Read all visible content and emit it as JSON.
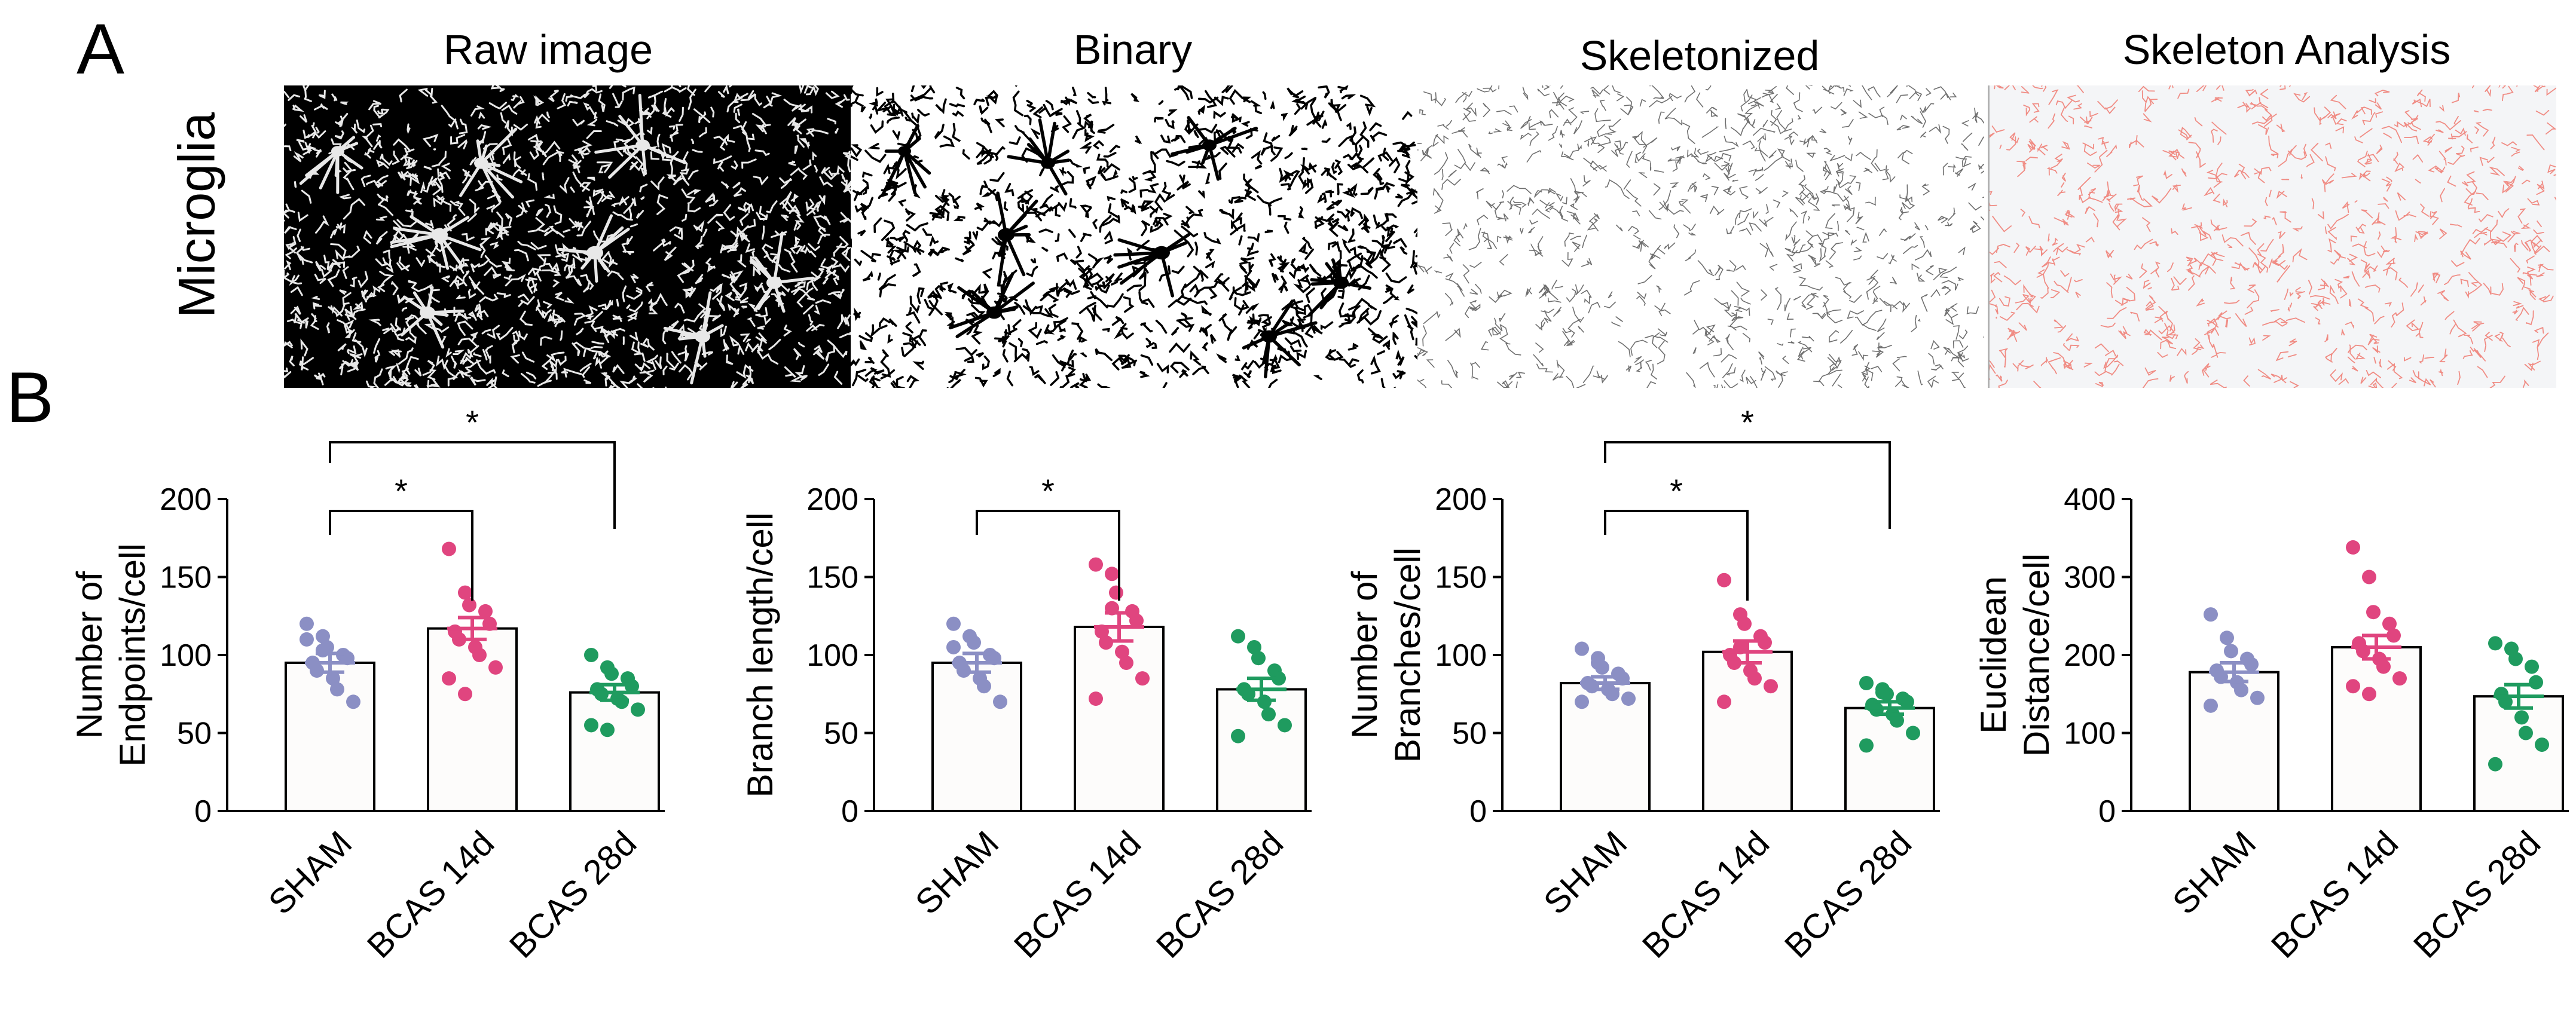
{
  "figure": {
    "panel_a_label": "A",
    "panel_b_label": "B",
    "row_label": "Microglia",
    "image_titles": [
      "Raw image",
      "Binary",
      "Skeletonized",
      "Skeleton Analysis"
    ]
  },
  "colors": {
    "sham": "#8b8fc4",
    "bcas14": "#e0457f",
    "bcas28": "#1f9b5f",
    "skeleton_trace": "#f0a3a0",
    "raw_bg": "#000000"
  },
  "chart_data": [
    {
      "type": "bar",
      "ylabel": [
        "Number of",
        "Endpoints/cell"
      ],
      "categories": [
        "SHAM",
        "BCAS 14d",
        "BCAS 28d"
      ],
      "values": [
        95,
        117,
        76
      ],
      "sem": [
        6,
        7,
        5
      ],
      "ylim": [
        0,
        200
      ],
      "yticks": [
        0,
        50,
        100,
        150,
        200
      ],
      "points": [
        [
          120,
          112,
          105,
          100,
          98,
          95,
          90,
          85,
          78,
          70,
          110,
          103
        ],
        [
          168,
          140,
          132,
          128,
          120,
          115,
          110,
          105,
          100,
          92,
          85,
          75
        ],
        [
          100,
          92,
          88,
          85,
          80,
          78,
          75,
          72,
          70,
          65,
          55,
          52
        ]
      ],
      "significance": [
        {
          "from": 0,
          "to": 1,
          "label": "*"
        },
        {
          "from": 0,
          "to": 2,
          "label": "*"
        }
      ]
    },
    {
      "type": "bar",
      "ylabel": [
        "Branch length/cell"
      ],
      "categories": [
        "SHAM",
        "BCAS 14d",
        "BCAS 28d"
      ],
      "values": [
        95,
        118,
        78
      ],
      "sem": [
        6,
        9,
        7
      ],
      "ylim": [
        0,
        200
      ],
      "yticks": [
        0,
        50,
        100,
        150,
        200
      ],
      "points": [
        [
          120,
          112,
          108,
          100,
          98,
          95,
          90,
          85,
          80,
          70,
          105
        ],
        [
          158,
          152,
          140,
          128,
          122,
          115,
          108,
          102,
          95,
          85,
          72,
          130
        ],
        [
          112,
          105,
          98,
          90,
          85,
          78,
          75,
          70,
          62,
          55,
          48
        ]
      ],
      "significance": [
        {
          "from": 0,
          "to": 1,
          "label": "*"
        }
      ]
    },
    {
      "type": "bar",
      "ylabel": [
        "Number of",
        "Branches/cell"
      ],
      "categories": [
        "SHAM",
        "BCAS 14d",
        "BCAS 28d"
      ],
      "values": [
        82,
        102,
        66
      ],
      "sem": [
        4,
        7,
        4
      ],
      "ylim": [
        0,
        200
      ],
      "yticks": [
        0,
        50,
        100,
        150,
        200
      ],
      "points": [
        [
          104,
          98,
          92,
          88,
          85,
          82,
          80,
          78,
          75,
          72,
          70,
          95
        ],
        [
          148,
          126,
          120,
          112,
          108,
          100,
          95,
          90,
          85,
          80,
          70,
          105
        ],
        [
          82,
          78,
          75,
          72,
          70,
          68,
          65,
          62,
          58,
          50,
          42,
          76
        ]
      ],
      "significance": [
        {
          "from": 0,
          "to": 1,
          "label": "*"
        },
        {
          "from": 0,
          "to": 2,
          "label": "*"
        }
      ]
    },
    {
      "type": "bar",
      "ylabel": [
        "Euclidean",
        "Distance/cell"
      ],
      "categories": [
        "SHAM",
        "BCAS 14d",
        "BCAS 28d"
      ],
      "values": [
        178,
        210,
        147
      ],
      "sem": [
        12,
        15,
        15
      ],
      "ylim": [
        0,
        400
      ],
      "yticks": [
        0,
        100,
        200,
        300,
        400
      ],
      "points": [
        [
          252,
          222,
          205,
          195,
          188,
          180,
          172,
          165,
          155,
          145,
          135
        ],
        [
          338,
          300,
          255,
          240,
          225,
          215,
          205,
          195,
          185,
          170,
          160,
          150
        ],
        [
          215,
          208,
          195,
          185,
          165,
          150,
          140,
          120,
          100,
          85,
          60
        ]
      ],
      "significance": []
    }
  ]
}
